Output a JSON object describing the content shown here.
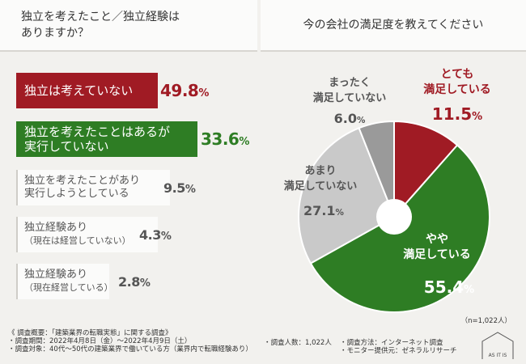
{
  "left_title": "独立を考えたこと／独立経験は\nありますか？",
  "right_title": "今の会社の満足度を教えてください",
  "bar_chart": {
    "type": "bar",
    "title": "独立を考えたこと／独立経験はありますか？",
    "items": [
      {
        "label": "独立は考えていない",
        "sub": "",
        "value": "49.8",
        "pct_symbol": "%",
        "color": "#a01b24"
      },
      {
        "label": "独立を考えたことはあるが\n実行していない",
        "sub": "",
        "value": "33.6",
        "pct_symbol": "%",
        "color": "#2e7d24"
      },
      {
        "label": "独立を考えたことがあり\n実行しようとしている",
        "sub": "",
        "value": "9.5",
        "pct_symbol": "%",
        "color": "#555555"
      },
      {
        "label": "独立経験あり",
        "sub": "（現在は経営していない）",
        "value": "4.3",
        "pct_symbol": "%",
        "color": "#555555"
      },
      {
        "label": "独立経験あり",
        "sub": "（現在経営している）",
        "value": "2.8",
        "pct_symbol": "%",
        "color": "#555555"
      }
    ]
  },
  "chart_data": {
    "type": "pie",
    "title": "今の会社の満足度を教えてください",
    "slices": [
      {
        "label": "とても\n満足している",
        "value": 11.5,
        "display": "11.5",
        "color": "#a01b24",
        "label_color": "#a01b24"
      },
      {
        "label": "やや\n満足している",
        "value": 55.4,
        "display": "55.4",
        "color": "#2e7d24",
        "label_color": "#ffffff"
      },
      {
        "label": "あまり\n満足していない",
        "value": 27.1,
        "display": "27.1",
        "color": "#c9c9c9",
        "label_color": "#555555"
      },
      {
        "label": "まったく\n満足していない",
        "value": 6.0,
        "display": "6.0",
        "color": "#9a9a9a",
        "label_color": "#555555"
      }
    ],
    "pct_symbol": "%",
    "n_note": "（n=1,022人）"
  },
  "footer": {
    "line1": "《 調査概要：「建築業界の転職実態」に関する調査》",
    "line2": "・調査期間：2022年4月8日（金）〜2022年4月9日（土）",
    "line3": "・調査対象：40代〜50代の建築業界で働いている方（業界内で転職経験あり）",
    "count": "・調査人数：1,022人",
    "method": "・調査方法：インターネット調査",
    "provider": "・モニター提供元：ゼネラルリサーチ"
  },
  "logo_text": "AS IT IS"
}
